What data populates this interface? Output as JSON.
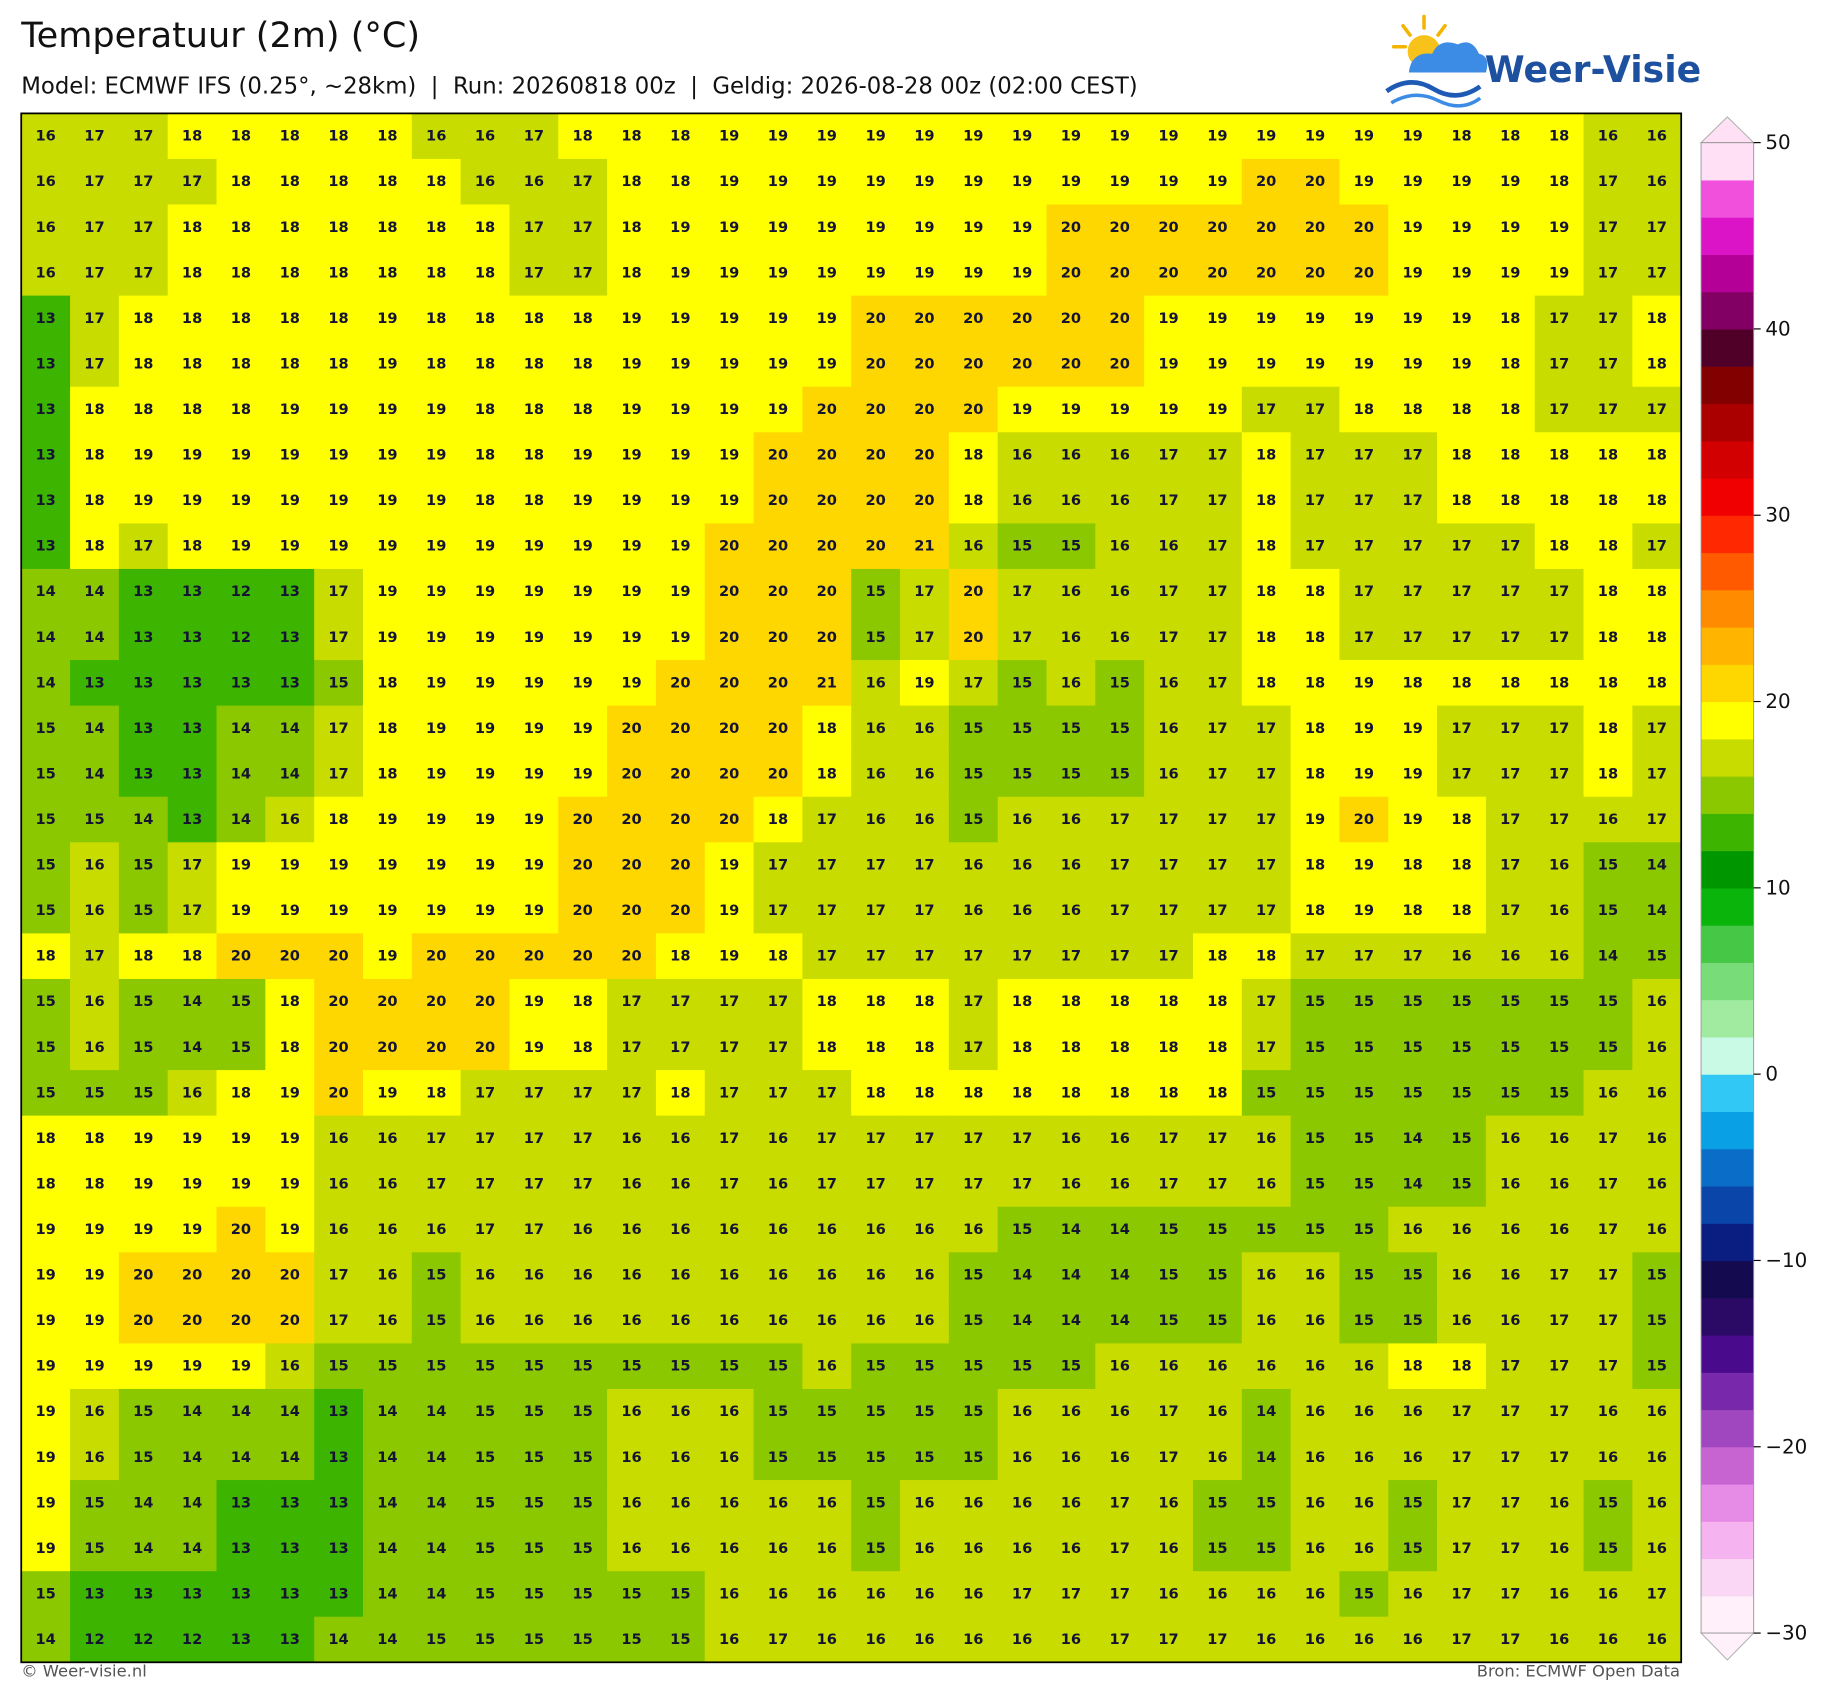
{
  "header": {
    "title": "Temperatuur (2m) (°C)",
    "subtitle": "Model: ECMWF IFS (0.25°, ~28km)  |  Run: 20260818 00z  |  Geldig: 2026-08-28 00z (02:00 CEST)",
    "logo": "Weer-Visie"
  },
  "map": {
    "values": [
      [
        16,
        17,
        17,
        18,
        18,
        18,
        18,
        18,
        16,
        16,
        17,
        18,
        18,
        18,
        19,
        19,
        19,
        19,
        19,
        19,
        19,
        19,
        19,
        19,
        19,
        19,
        19,
        19,
        19,
        18,
        18,
        18,
        16,
        16
      ],
      [
        16,
        17,
        17,
        17,
        18,
        18,
        18,
        18,
        18,
        16,
        16,
        17,
        18,
        18,
        19,
        19,
        19,
        19,
        19,
        19,
        19,
        19,
        19,
        19,
        19,
        20,
        20,
        19,
        19,
        19,
        19,
        18,
        17,
        16
      ],
      [
        16,
        17,
        17,
        18,
        18,
        18,
        18,
        18,
        18,
        18,
        17,
        17,
        18,
        19,
        19,
        19,
        19,
        19,
        19,
        19,
        19,
        20,
        20,
        20,
        20,
        20,
        20,
        20,
        19,
        19,
        19,
        19,
        17,
        17
      ],
      [
        16,
        17,
        17,
        18,
        18,
        18,
        18,
        18,
        18,
        18,
        17,
        17,
        18,
        19,
        19,
        19,
        19,
        19,
        19,
        19,
        19,
        20,
        20,
        20,
        20,
        20,
        20,
        20,
        19,
        19,
        19,
        19,
        17,
        17
      ],
      [
        13,
        17,
        18,
        18,
        18,
        18,
        18,
        19,
        18,
        18,
        18,
        18,
        19,
        19,
        19,
        19,
        19,
        20,
        20,
        20,
        20,
        20,
        20,
        19,
        19,
        19,
        19,
        19,
        19,
        19,
        18,
        17,
        17,
        18
      ],
      [
        13,
        17,
        18,
        18,
        18,
        18,
        18,
        19,
        18,
        18,
        18,
        18,
        19,
        19,
        19,
        19,
        19,
        20,
        20,
        20,
        20,
        20,
        20,
        19,
        19,
        19,
        19,
        19,
        19,
        19,
        18,
        17,
        17,
        18
      ],
      [
        13,
        18,
        18,
        18,
        18,
        19,
        19,
        19,
        19,
        18,
        18,
        18,
        19,
        19,
        19,
        19,
        20,
        20,
        20,
        20,
        19,
        19,
        19,
        19,
        19,
        17,
        17,
        18,
        18,
        18,
        18,
        17,
        17,
        17
      ],
      [
        13,
        18,
        19,
        19,
        19,
        19,
        19,
        19,
        19,
        18,
        18,
        19,
        19,
        19,
        19,
        20,
        20,
        20,
        20,
        18,
        16,
        16,
        16,
        17,
        17,
        18,
        17,
        17,
        17,
        18,
        18,
        18,
        18,
        18
      ],
      [
        13,
        18,
        19,
        19,
        19,
        19,
        19,
        19,
        19,
        18,
        18,
        19,
        19,
        19,
        19,
        20,
        20,
        20,
        20,
        18,
        16,
        16,
        16,
        17,
        17,
        18,
        17,
        17,
        17,
        18,
        18,
        18,
        18,
        18
      ],
      [
        13,
        18,
        17,
        18,
        19,
        19,
        19,
        19,
        19,
        19,
        19,
        19,
        19,
        19,
        20,
        20,
        20,
        20,
        21,
        16,
        15,
        15,
        16,
        16,
        17,
        18,
        17,
        17,
        17,
        17,
        17,
        18,
        18,
        17
      ],
      [
        14,
        14,
        13,
        13,
        12,
        13,
        17,
        19,
        19,
        19,
        19,
        19,
        19,
        19,
        20,
        20,
        20,
        15,
        17,
        20,
        17,
        16,
        16,
        17,
        17,
        18,
        18,
        17,
        17,
        17,
        17,
        17,
        18,
        18
      ],
      [
        14,
        14,
        13,
        13,
        12,
        13,
        17,
        19,
        19,
        19,
        19,
        19,
        19,
        19,
        20,
        20,
        20,
        15,
        17,
        20,
        17,
        16,
        16,
        17,
        17,
        18,
        18,
        17,
        17,
        17,
        17,
        17,
        18,
        18
      ],
      [
        14,
        13,
        13,
        13,
        13,
        13,
        15,
        18,
        19,
        19,
        19,
        19,
        19,
        20,
        20,
        20,
        21,
        16,
        19,
        17,
        15,
        16,
        15,
        16,
        17,
        18,
        18,
        19,
        18,
        18,
        18,
        18,
        18,
        18
      ],
      [
        15,
        14,
        13,
        13,
        14,
        14,
        17,
        18,
        19,
        19,
        19,
        19,
        20,
        20,
        20,
        20,
        18,
        16,
        16,
        15,
        15,
        15,
        15,
        16,
        17,
        17,
        18,
        19,
        19,
        17,
        17,
        17,
        18,
        17
      ],
      [
        15,
        14,
        13,
        13,
        14,
        14,
        17,
        18,
        19,
        19,
        19,
        19,
        20,
        20,
        20,
        20,
        18,
        16,
        16,
        15,
        15,
        15,
        15,
        16,
        17,
        17,
        18,
        19,
        19,
        17,
        17,
        17,
        18,
        17
      ],
      [
        15,
        15,
        14,
        13,
        14,
        16,
        18,
        19,
        19,
        19,
        19,
        20,
        20,
        20,
        20,
        18,
        17,
        16,
        16,
        15,
        16,
        16,
        17,
        17,
        17,
        17,
        19,
        20,
        19,
        18,
        17,
        17,
        16,
        17
      ],
      [
        15,
        16,
        15,
        17,
        19,
        19,
        19,
        19,
        19,
        19,
        19,
        20,
        20,
        20,
        19,
        17,
        17,
        17,
        17,
        16,
        16,
        16,
        17,
        17,
        17,
        17,
        18,
        19,
        18,
        18,
        17,
        16,
        15,
        14
      ],
      [
        15,
        16,
        15,
        17,
        19,
        19,
        19,
        19,
        19,
        19,
        19,
        20,
        20,
        20,
        19,
        17,
        17,
        17,
        17,
        16,
        16,
        16,
        17,
        17,
        17,
        17,
        18,
        19,
        18,
        18,
        17,
        16,
        15,
        14
      ],
      [
        18,
        17,
        18,
        18,
        20,
        20,
        20,
        19,
        20,
        20,
        20,
        20,
        20,
        18,
        19,
        18,
        17,
        17,
        17,
        17,
        17,
        17,
        17,
        17,
        18,
        18,
        17,
        17,
        17,
        16,
        16,
        16,
        14,
        15
      ],
      [
        15,
        16,
        15,
        14,
        15,
        18,
        20,
        20,
        20,
        20,
        19,
        18,
        17,
        17,
        17,
        17,
        18,
        18,
        18,
        17,
        18,
        18,
        18,
        18,
        18,
        17,
        15,
        15,
        15,
        15,
        15,
        15,
        15,
        16
      ],
      [
        15,
        16,
        15,
        14,
        15,
        18,
        20,
        20,
        20,
        20,
        19,
        18,
        17,
        17,
        17,
        17,
        18,
        18,
        18,
        17,
        18,
        18,
        18,
        18,
        18,
        17,
        15,
        15,
        15,
        15,
        15,
        15,
        15,
        16
      ],
      [
        15,
        15,
        15,
        16,
        18,
        19,
        20,
        19,
        18,
        17,
        17,
        17,
        17,
        18,
        17,
        17,
        17,
        18,
        18,
        18,
        18,
        18,
        18,
        18,
        18,
        15,
        15,
        15,
        15,
        15,
        15,
        15,
        16,
        16
      ],
      [
        18,
        18,
        19,
        19,
        19,
        19,
        16,
        16,
        17,
        17,
        17,
        17,
        16,
        16,
        17,
        16,
        17,
        17,
        17,
        17,
        17,
        16,
        16,
        17,
        17,
        16,
        15,
        15,
        14,
        15,
        16,
        16,
        17,
        16
      ],
      [
        18,
        18,
        19,
        19,
        19,
        19,
        16,
        16,
        17,
        17,
        17,
        17,
        16,
        16,
        17,
        16,
        17,
        17,
        17,
        17,
        17,
        16,
        16,
        17,
        17,
        16,
        15,
        15,
        14,
        15,
        16,
        16,
        17,
        16
      ],
      [
        19,
        19,
        19,
        19,
        20,
        19,
        16,
        16,
        16,
        17,
        17,
        16,
        16,
        16,
        16,
        16,
        16,
        16,
        16,
        16,
        15,
        14,
        14,
        15,
        15,
        15,
        15,
        15,
        16,
        16,
        16,
        16,
        17,
        16
      ],
      [
        19,
        19,
        20,
        20,
        20,
        20,
        17,
        16,
        15,
        16,
        16,
        16,
        16,
        16,
        16,
        16,
        16,
        16,
        16,
        15,
        14,
        14,
        14,
        15,
        15,
        16,
        16,
        15,
        15,
        16,
        16,
        17,
        17,
        15
      ],
      [
        19,
        19,
        20,
        20,
        20,
        20,
        17,
        16,
        15,
        16,
        16,
        16,
        16,
        16,
        16,
        16,
        16,
        16,
        16,
        15,
        14,
        14,
        14,
        15,
        15,
        16,
        16,
        15,
        15,
        16,
        16,
        17,
        17,
        15
      ],
      [
        19,
        19,
        19,
        19,
        19,
        16,
        15,
        15,
        15,
        15,
        15,
        15,
        15,
        15,
        15,
        15,
        16,
        15,
        15,
        15,
        15,
        15,
        16,
        16,
        16,
        16,
        16,
        16,
        18,
        18,
        17,
        17,
        17,
        15
      ],
      [
        19,
        16,
        15,
        14,
        14,
        14,
        13,
        14,
        14,
        15,
        15,
        15,
        16,
        16,
        16,
        15,
        15,
        15,
        15,
        15,
        16,
        16,
        16,
        17,
        16,
        14,
        16,
        16,
        16,
        17,
        17,
        17,
        16,
        16
      ],
      [
        19,
        16,
        15,
        14,
        14,
        14,
        13,
        14,
        14,
        15,
        15,
        15,
        16,
        16,
        16,
        15,
        15,
        15,
        15,
        15,
        16,
        16,
        16,
        17,
        16,
        14,
        16,
        16,
        16,
        17,
        17,
        17,
        16,
        16
      ],
      [
        19,
        15,
        14,
        14,
        13,
        13,
        13,
        14,
        14,
        15,
        15,
        15,
        16,
        16,
        16,
        16,
        16,
        15,
        16,
        16,
        16,
        16,
        17,
        16,
        15,
        15,
        16,
        16,
        15,
        17,
        17,
        16,
        15,
        16
      ],
      [
        19,
        15,
        14,
        14,
        13,
        13,
        13,
        14,
        14,
        15,
        15,
        15,
        16,
        16,
        16,
        16,
        16,
        15,
        16,
        16,
        16,
        16,
        17,
        16,
        15,
        15,
        16,
        16,
        15,
        17,
        17,
        16,
        15,
        16
      ],
      [
        15,
        13,
        13,
        13,
        13,
        13,
        13,
        14,
        14,
        15,
        15,
        15,
        15,
        15,
        16,
        16,
        16,
        16,
        16,
        16,
        17,
        17,
        17,
        16,
        16,
        16,
        16,
        15,
        16,
        17,
        17,
        16,
        16,
        17
      ],
      [
        14,
        12,
        12,
        12,
        13,
        13,
        14,
        14,
        15,
        15,
        15,
        15,
        15,
        15,
        16,
        17,
        16,
        16,
        16,
        16,
        16,
        16,
        17,
        17,
        17,
        16,
        16,
        16,
        16,
        17,
        17,
        16,
        16,
        16
      ]
    ],
    "colorbar": {
      "lim": [
        -30,
        50
      ],
      "ticks": [
        {
          "value": -30,
          "label": "−30"
        },
        {
          "value": -20,
          "label": "−20"
        },
        {
          "value": -10,
          "label": "−10"
        },
        0,
        10,
        20,
        30,
        40,
        50
      ],
      "colors": [
        "#fff0fa",
        "#fad7f5",
        "#f5b4f0",
        "#e68ce6",
        "#c864d2",
        "#a046be",
        "#7828aa",
        "#4a0a8c",
        "#2a0a64",
        "#140a50",
        "#0a1e82",
        "#0a46aa",
        "#0a6ec8",
        "#0aa0e6",
        "#32c8f5",
        "#c8fae6",
        "#a0eba0",
        "#78dc78",
        "#46c846",
        "#0ab40a",
        "#009600",
        "#3cb400",
        "#8cc800",
        "#c8dc00",
        "#ffff00",
        "#ffd700",
        "#ffb400",
        "#ff8c00",
        "#ff5a00",
        "#ff2800",
        "#f00000",
        "#d20000",
        "#aa0000",
        "#820000",
        "#500028",
        "#820064",
        "#b40096",
        "#dc14c8",
        "#f050dc",
        "#ffe0f5"
      ]
    }
  },
  "footer": {
    "left": "© Weer-visie.nl",
    "right": "Bron: ECMWF Open Data"
  }
}
